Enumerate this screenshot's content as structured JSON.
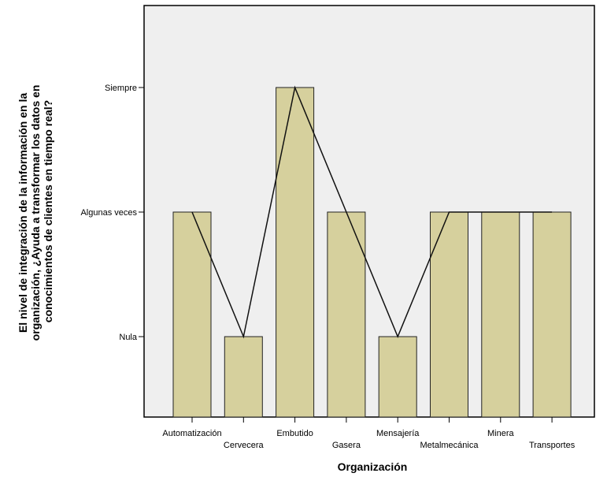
{
  "chart_data": {
    "type": "bar",
    "xlabel": "Organización",
    "ylabel_lines": [
      "El nivel de integración de la información en la",
      "organización, ¿Ayuda a transformar los datos en",
      "conocimientos de clientes en tiempo real?"
    ],
    "y_levels": [
      "Nula",
      "Algunas veces",
      "Siempre"
    ],
    "categories": [
      "Automatización",
      "Cervecera",
      "Embutido",
      "Gasera",
      "Mensajería",
      "Metalmecánica",
      "Minera",
      "Transportes"
    ],
    "values": [
      "Algunas veces",
      "Nula",
      "Siempre",
      "Algunas veces",
      "Nula",
      "Algunas veces",
      "Algunas veces",
      "Algunas veces"
    ],
    "overlay_line": true,
    "colors": {
      "bar_fill": "#d6d09d",
      "bar_stroke": "#222222",
      "plot_background": "#efefef",
      "line": "#111111"
    }
  }
}
